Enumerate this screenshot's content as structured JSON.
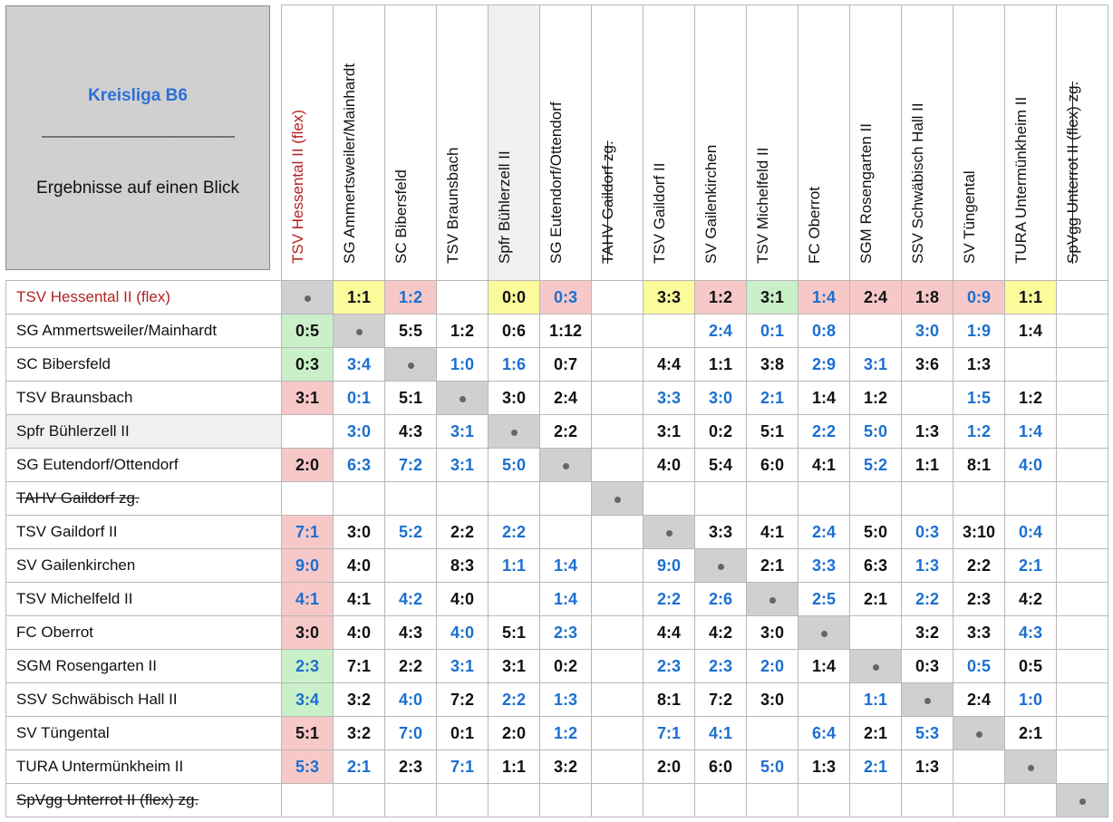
{
  "title": "Kreisliga B6",
  "divider": "_________________________",
  "subtitle": "Ergebnisse auf einen Blick",
  "colors": {
    "blue": "#1a6fd1",
    "black": "#111111",
    "red": "#b22222",
    "bg_red": "#f6c8c8",
    "bg_green": "#c9f0c9",
    "bg_yellow": "#fbfb9c",
    "bg_gray": "#d0d0d0",
    "bg_row": "#f0f0f0"
  },
  "teams": [
    {
      "name": "TSV Hessental II (flex)",
      "style": "red"
    },
    {
      "name": "SG Ammertsweiler/Mainhardt",
      "style": "normal"
    },
    {
      "name": "SC Bibersfeld",
      "style": "normal"
    },
    {
      "name": "TSV Braunsbach",
      "style": "normal"
    },
    {
      "name": "Spfr Bühlerzell II",
      "style": "shaded"
    },
    {
      "name": "SG Eutendorf/Ottendorf",
      "style": "normal"
    },
    {
      "name": "TAHV Gaildorf zg.",
      "style": "strike"
    },
    {
      "name": "TSV Gaildorf II",
      "style": "normal"
    },
    {
      "name": "SV Gailenkirchen",
      "style": "normal"
    },
    {
      "name": "TSV Michelfeld II",
      "style": "normal"
    },
    {
      "name": "FC Oberrot",
      "style": "normal"
    },
    {
      "name": "SGM Rosengarten II",
      "style": "normal"
    },
    {
      "name": "SSV Schwäbisch Hall II",
      "style": "normal"
    },
    {
      "name": "SV Tüngental",
      "style": "normal"
    },
    {
      "name": "TURA Untermünkheim II",
      "style": "normal"
    },
    {
      "name": "SpVgg Unterrot II (flex) zg.",
      "style": "strike"
    }
  ],
  "results": [
    [
      null,
      "1:1|k|y",
      "1:2|b|r",
      "",
      "0:0|k|y",
      "0:3|b|r",
      "",
      "3:3|k|y",
      "1:2|k|r",
      "3:1|k|g",
      "1:4|b|r",
      "2:4|k|r",
      "1:8|k|r",
      "0:9|b|r",
      "1:1|k|y",
      ""
    ],
    [
      "0:5|k|g",
      null,
      "5:5|k",
      "1:2|k",
      "0:6|k",
      "1:12|k",
      "",
      "",
      "2:4|b",
      "0:1|b",
      "0:8|b",
      "",
      "3:0|b",
      "1:9|b",
      "1:4|k",
      ""
    ],
    [
      "0:3|k|g",
      "3:4|b",
      null,
      "1:0|b",
      "1:6|b",
      "0:7|k",
      "",
      "4:4|k",
      "1:1|k",
      "3:8|k",
      "2:9|b",
      "3:1|b",
      "3:6|k",
      "1:3|k",
      "",
      ""
    ],
    [
      "3:1|k|r",
      "0:1|b",
      "5:1|k",
      null,
      "3:0|k",
      "2:4|k",
      "",
      "3:3|b",
      "3:0|b",
      "2:1|b",
      "1:4|k",
      "1:2|k",
      "",
      "1:5|b",
      "1:2|k",
      ""
    ],
    [
      "",
      "3:0|b",
      "4:3|k",
      "3:1|b",
      null,
      "2:2|k",
      "",
      "3:1|k",
      "0:2|k",
      "5:1|k",
      "2:2|b",
      "5:0|b",
      "1:3|k",
      "1:2|b",
      "1:4|b",
      ""
    ],
    [
      "2:0|k|r",
      "6:3|b",
      "7:2|b",
      "3:1|b",
      "5:0|b",
      null,
      "",
      "4:0|k",
      "5:4|k",
      "6:0|k",
      "4:1|k",
      "5:2|b",
      "1:1|k",
      "8:1|k",
      "4:0|b",
      ""
    ],
    [
      "",
      "",
      "",
      "",
      "",
      "",
      null,
      "",
      "",
      "",
      "",
      "",
      "",
      "",
      "",
      ""
    ],
    [
      "7:1|b|r",
      "3:0|k",
      "5:2|b",
      "2:2|k",
      "2:2|b",
      "",
      "",
      null,
      "3:3|k",
      "4:1|k",
      "2:4|b",
      "5:0|k",
      "0:3|b",
      "3:10|k",
      "0:4|b",
      ""
    ],
    [
      "9:0|b|r",
      "4:0|k",
      "",
      "8:3|k",
      "1:1|b",
      "1:4|b",
      "",
      "9:0|b",
      null,
      "2:1|k",
      "3:3|b",
      "6:3|k",
      "1:3|b",
      "2:2|k",
      "2:1|b",
      ""
    ],
    [
      "4:1|b|r",
      "4:1|k",
      "4:2|b",
      "4:0|k",
      "",
      "1:4|b",
      "",
      "2:2|b",
      "2:6|b",
      null,
      "2:5|b",
      "2:1|k",
      "2:2|b",
      "2:3|k",
      "4:2|k",
      ""
    ],
    [
      "3:0|k|r",
      "4:0|k",
      "4:3|k",
      "4:0|b",
      "5:1|k",
      "2:3|b",
      "",
      "4:4|k",
      "4:2|k",
      "3:0|k",
      null,
      "",
      "3:2|k",
      "3:3|k",
      "4:3|b",
      ""
    ],
    [
      "2:3|b|g",
      "7:1|k",
      "2:2|k",
      "3:1|b",
      "3:1|k",
      "0:2|k",
      "",
      "2:3|b",
      "2:3|b",
      "2:0|b",
      "1:4|k",
      null,
      "0:3|k",
      "0:5|b",
      "0:5|k",
      ""
    ],
    [
      "3:4|b|g",
      "3:2|k",
      "4:0|b",
      "7:2|k",
      "2:2|b",
      "1:3|b",
      "",
      "8:1|k",
      "7:2|k",
      "3:0|k",
      "",
      "1:1|b",
      null,
      "2:4|k",
      "1:0|b",
      ""
    ],
    [
      "5:1|k|r",
      "3:2|k",
      "7:0|b",
      "0:1|k",
      "2:0|k",
      "1:2|b",
      "",
      "7:1|b",
      "4:1|b",
      "",
      "6:4|b",
      "2:1|k",
      "5:3|b",
      null,
      "2:1|k",
      ""
    ],
    [
      "5:3|b|r",
      "2:1|b",
      "2:3|k",
      "7:1|b",
      "1:1|k",
      "3:2|k",
      "",
      "2:0|k",
      "6:0|k",
      "5:0|b",
      "1:3|k",
      "2:1|b",
      "1:3|k",
      "",
      null,
      ""
    ],
    [
      "",
      "",
      "",
      "",
      "",
      "",
      "",
      "",
      "",
      "",
      "",
      "",
      "",
      "",
      "",
      null
    ]
  ]
}
